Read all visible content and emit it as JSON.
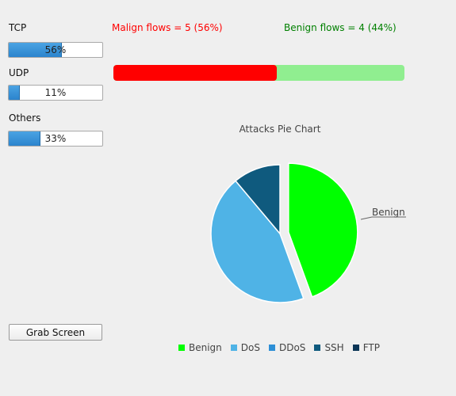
{
  "protocols": [
    {
      "label": "TCP",
      "value": 56,
      "text": "56%"
    },
    {
      "label": "UDP",
      "value": 11,
      "text": "11%"
    },
    {
      "label": "Others",
      "value": 33,
      "text": "33%"
    }
  ],
  "flows": {
    "malign_text": "Malign flows = 5 (56%)",
    "benign_text": "Benign flows = 4 (44%)",
    "malign_fraction": 0.56,
    "malign_color": "#ff0000",
    "benign_color": "#008000",
    "benign_bar_color": "#90ee90"
  },
  "grab_button": "Grab Screen",
  "chart_data": {
    "type": "pie",
    "title": "Attacks Pie Chart",
    "slices": [
      {
        "name": "Benign",
        "value": 4,
        "color": "#00ff00",
        "exploded": true
      },
      {
        "name": "DoS",
        "value": 4,
        "color": "#4fb3e6",
        "exploded": false
      },
      {
        "name": "DDoS",
        "value": 0,
        "color": "#2d8fd6",
        "exploded": false
      },
      {
        "name": "SSH",
        "value": 1,
        "color": "#0f5a7e",
        "exploded": false
      },
      {
        "name": "FTP",
        "value": 0,
        "color": "#0b3556",
        "exploded": false
      }
    ],
    "callout_label": "Benign",
    "legend_position": "bottom"
  }
}
